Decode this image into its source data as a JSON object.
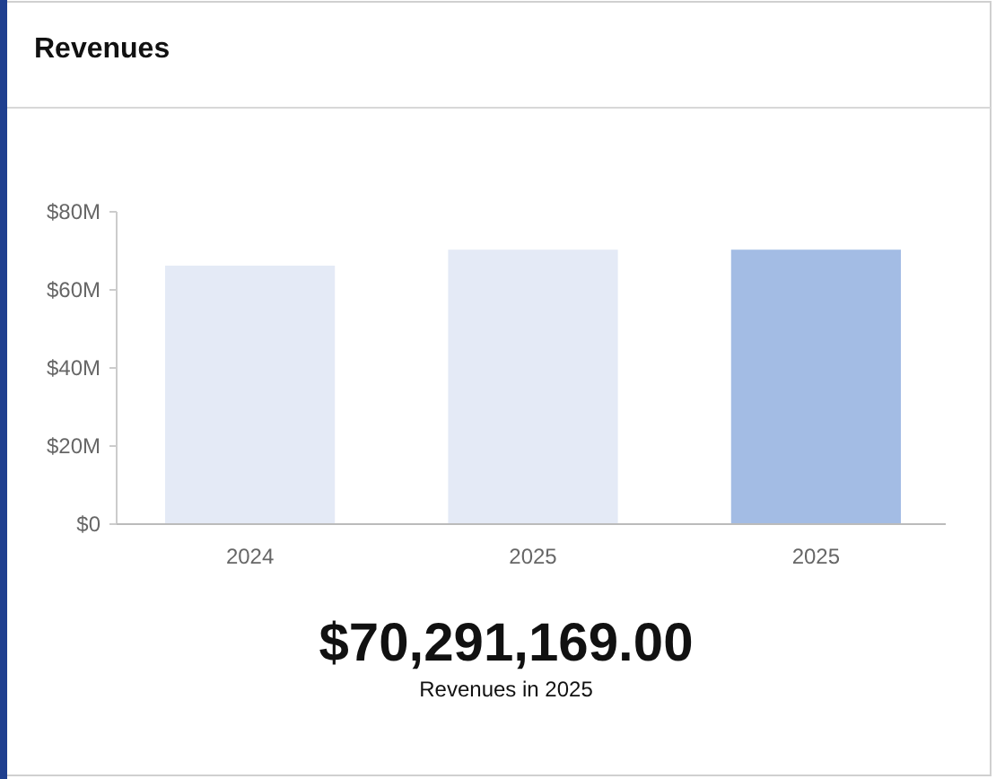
{
  "chart_data": {
    "type": "bar",
    "title": "Revenues",
    "categories": [
      "2024",
      "2025",
      "2025"
    ],
    "values": [
      66.2,
      70.3,
      70.3
    ],
    "colors": [
      "#e4eaf6",
      "#e4eaf6",
      "#a3bce4"
    ],
    "ylim": [
      0,
      80
    ],
    "yticks": [
      {
        "value": 0,
        "label": "$0"
      },
      {
        "value": 20,
        "label": "$20M"
      },
      {
        "value": 40,
        "label": "$40M"
      },
      {
        "value": 60,
        "label": "$60M"
      },
      {
        "value": 80,
        "label": "$80M"
      }
    ],
    "annotations": [
      "$70,291,169.00",
      "Revenues in 2025"
    ]
  }
}
